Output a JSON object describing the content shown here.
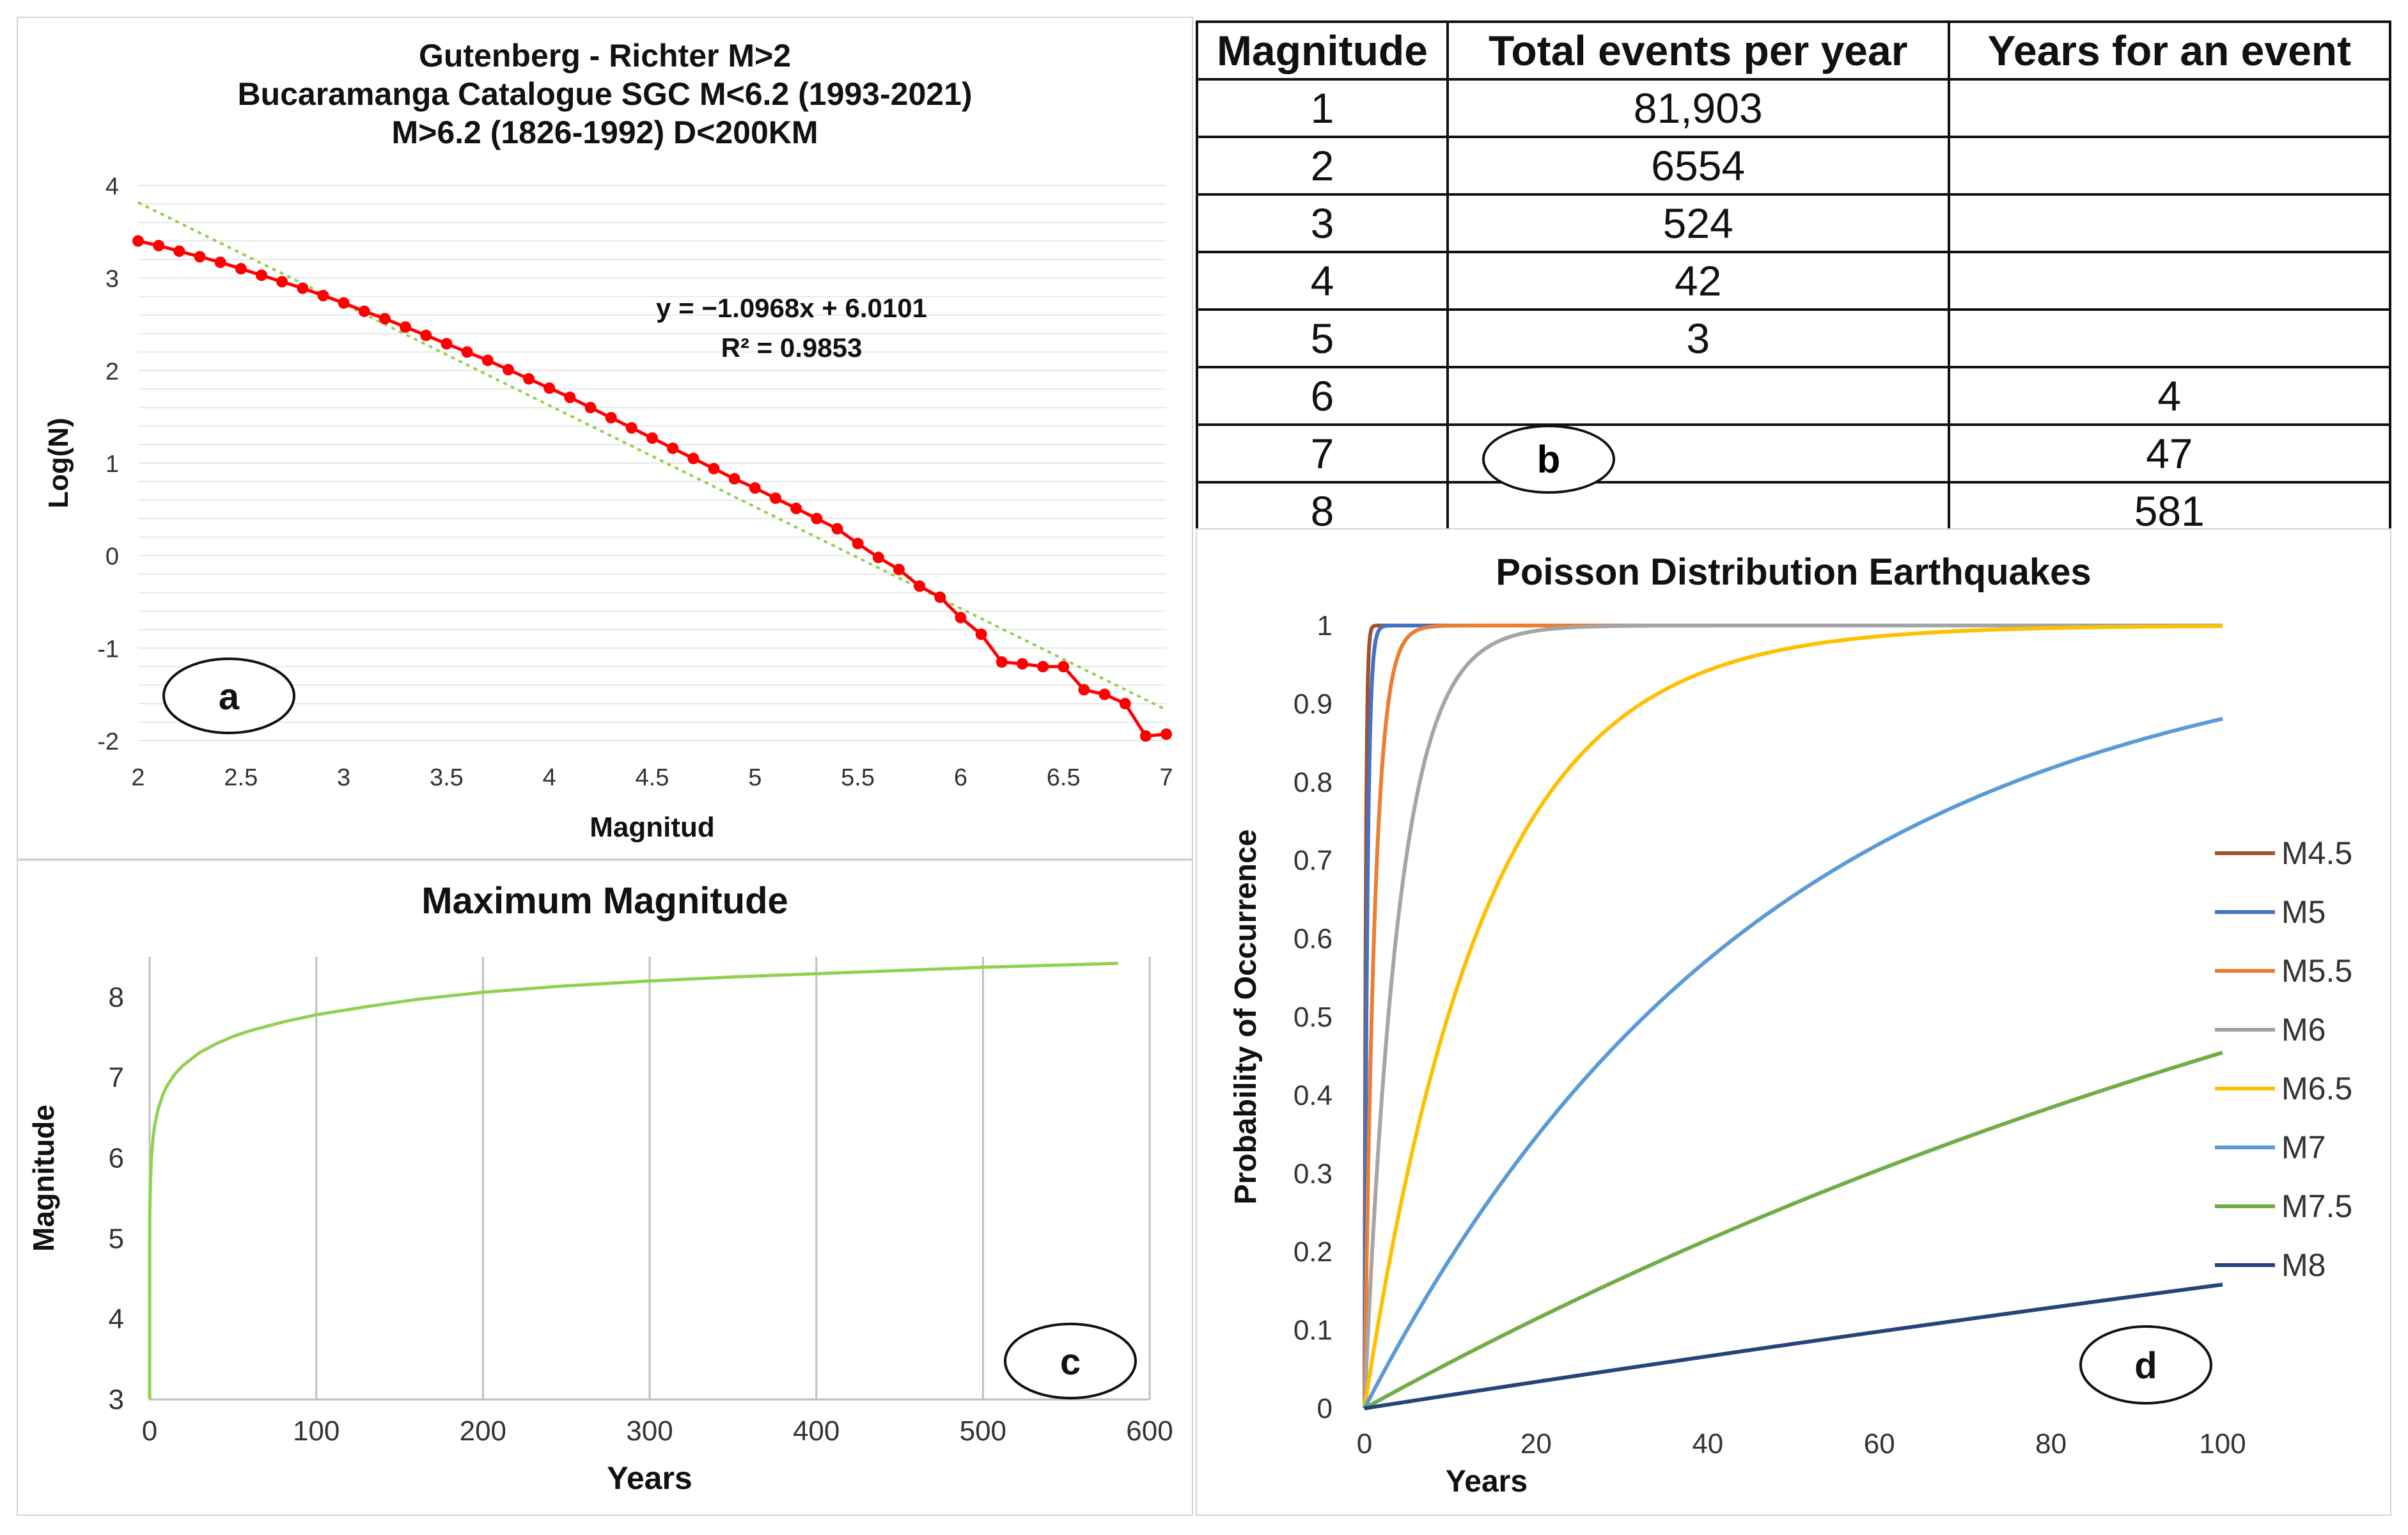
{
  "chart_data": [
    {
      "panel": "a",
      "type": "scatter",
      "title": [
        "Gutenberg - Richter M>2",
        "Bucaramanga Catalogue SGC M<6.2 (1993-2021)",
        "M>6.2 (1826-1992)    D<200KM"
      ],
      "xlabel": "Magnitud",
      "ylabel": "Log(N)",
      "xlim": [
        2,
        7
      ],
      "ylim": [
        -2,
        4
      ],
      "xticks": [
        "2",
        "2.5",
        "3",
        "3.5",
        "4",
        "4.5",
        "5",
        "5.5",
        "6",
        "6.5",
        "7"
      ],
      "yticks": [
        "-2",
        "-1",
        "0",
        "1",
        "2",
        "3",
        "4"
      ],
      "series": [
        {
          "name": "Log(N)",
          "color": "#ff0000",
          "x": [
            2.0,
            2.1,
            2.2,
            2.3,
            2.4,
            2.5,
            2.6,
            2.7,
            2.8,
            2.9,
            3.0,
            3.1,
            3.2,
            3.3,
            3.4,
            3.5,
            3.6,
            3.7,
            3.8,
            3.9,
            4.0,
            4.1,
            4.2,
            4.3,
            4.4,
            4.5,
            4.6,
            4.7,
            4.8,
            4.9,
            5.0,
            5.1,
            5.2,
            5.3,
            5.4,
            5.5,
            5.6,
            5.7,
            5.8,
            5.9,
            6.0,
            6.1,
            6.2,
            6.3,
            6.4,
            6.5,
            6.6,
            6.7,
            6.8,
            6.9,
            7.0
          ],
          "y": [
            3.4,
            3.35,
            3.29,
            3.23,
            3.17,
            3.1,
            3.03,
            2.96,
            2.89,
            2.81,
            2.73,
            2.64,
            2.56,
            2.47,
            2.38,
            2.29,
            2.2,
            2.11,
            2.01,
            1.91,
            1.81,
            1.71,
            1.6,
            1.49,
            1.38,
            1.27,
            1.16,
            1.05,
            0.94,
            0.83,
            0.73,
            0.62,
            0.51,
            0.4,
            0.29,
            0.13,
            -0.02,
            -0.15,
            -0.33,
            -0.45,
            -0.67,
            -0.85,
            -1.15,
            -1.17,
            -1.2,
            -1.2,
            -1.45,
            -1.5,
            -1.6,
            -1.95,
            -1.93
          ]
        }
      ],
      "trendline": {
        "slope": -1.0968,
        "intercept": 6.0101,
        "color": "#92d050"
      },
      "annotations": [
        "y = −1.0968x  + 6.0101",
        "R² = 0.9853"
      ],
      "label": "a"
    },
    {
      "panel": "c",
      "type": "line",
      "title": "Maximum Magnitude",
      "xlabel": "Years",
      "ylabel": "Magnitude",
      "xlim": [
        0,
        600
      ],
      "ylim": [
        3,
        8.5
      ],
      "xticks": [
        "0",
        "100",
        "200",
        "300",
        "400",
        "500",
        "600"
      ],
      "yticks": [
        "3",
        "4",
        "5",
        "6",
        "7",
        "8"
      ],
      "series": [
        {
          "name": "Maximum Magnitude",
          "color": "#92d050",
          "x": [
            0,
            0.05,
            0.1,
            0.3,
            0.5,
            1,
            2,
            3,
            5,
            8,
            10,
            15,
            20,
            30,
            40,
            50,
            60,
            80,
            100,
            130,
            160,
            200,
            250,
            300,
            350,
            400,
            450,
            500,
            550,
            581
          ],
          "y": [
            3.0,
            5.0,
            5.3,
            5.55,
            5.7,
            5.97,
            6.24,
            6.4,
            6.6,
            6.79,
            6.88,
            7.04,
            7.15,
            7.31,
            7.42,
            7.51,
            7.58,
            7.69,
            7.78,
            7.88,
            7.97,
            8.06,
            8.14,
            8.2,
            8.25,
            8.29,
            8.33,
            8.37,
            8.4,
            8.42
          ]
        }
      ],
      "label": "c"
    },
    {
      "panel": "d",
      "type": "line",
      "title": "Poisson Distribution  Earthquakes",
      "xlabel": "Years",
      "ylabel": "Probability of Occurrence",
      "xlim": [
        0,
        100
      ],
      "ylim": [
        0,
        1
      ],
      "xticks": [
        "0",
        "20",
        "40",
        "60",
        "80",
        "100"
      ],
      "yticks": [
        "0",
        "0.1",
        "0.2",
        "0.3",
        "0.4",
        "0.5",
        "0.6",
        "0.7",
        "0.8",
        "0.9",
        "1"
      ],
      "legend_position": "right",
      "series": [
        {
          "name": "M4.5",
          "color": "#a0522d",
          "return_period_years": 0.15
        },
        {
          "name": "M5",
          "color": "#4472c4",
          "return_period_years": 0.33
        },
        {
          "name": "M5.5",
          "color": "#ed7d31",
          "return_period_years": 1.2
        },
        {
          "name": "M6",
          "color": "#a5a5a5",
          "return_period_years": 4
        },
        {
          "name": "M6.5",
          "color": "#ffc000",
          "return_period_years": 14
        },
        {
          "name": "M7",
          "color": "#5b9bd5",
          "return_period_years": 47
        },
        {
          "name": "M7.5",
          "color": "#70ad47",
          "return_period_years": 165
        },
        {
          "name": "M8",
          "color": "#264478",
          "return_period_years": 581
        }
      ],
      "label": "d"
    }
  ],
  "table": {
    "label": "b",
    "headers": [
      "Magnitude",
      "Total events per year",
      "Years for an event"
    ],
    "rows": [
      [
        "1",
        "81,903",
        ""
      ],
      [
        "2",
        "6554",
        ""
      ],
      [
        "3",
        "524",
        ""
      ],
      [
        "4",
        "42",
        ""
      ],
      [
        "5",
        "3",
        ""
      ],
      [
        "6",
        "",
        "4"
      ],
      [
        "7",
        "",
        "47"
      ],
      [
        "8",
        "",
        "581"
      ]
    ]
  }
}
